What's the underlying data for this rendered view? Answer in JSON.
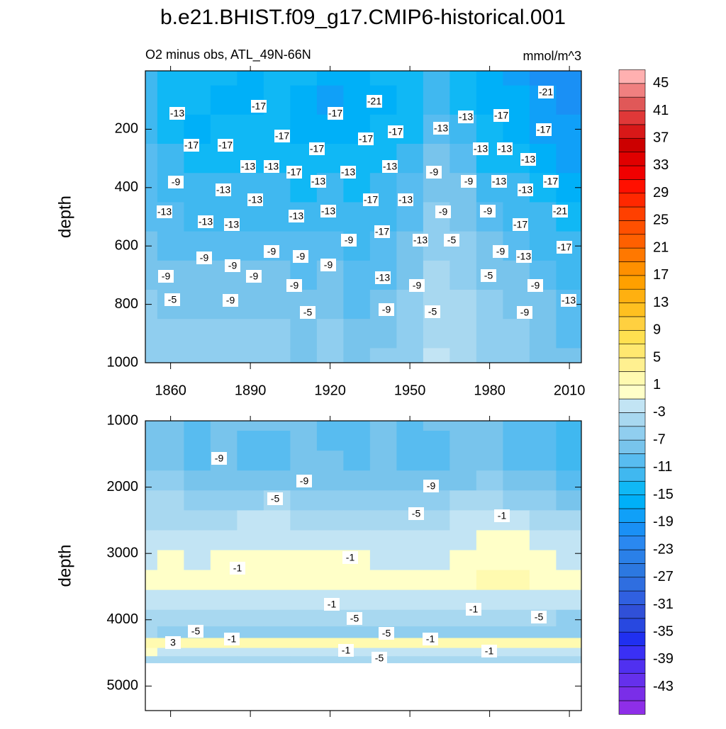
{
  "title": "b.e21.BHIST.f09_g17.CMIP6-historical.001",
  "colorbar": {
    "levels": [
      -45,
      -43,
      -41,
      -39,
      -37,
      -35,
      -33,
      -31,
      -29,
      -27,
      -25,
      -23,
      -21,
      -19,
      -17,
      -15,
      -13,
      -11,
      -9,
      -7,
      -5,
      -3,
      -1,
      1,
      3,
      5,
      7,
      9,
      11,
      13,
      15,
      17,
      19,
      21,
      23,
      25,
      27,
      29,
      31,
      33,
      35,
      37,
      39,
      41,
      43,
      45
    ],
    "ticks": [
      45,
      41,
      37,
      33,
      29,
      25,
      21,
      17,
      13,
      9,
      5,
      1,
      -3,
      -7,
      -11,
      -15,
      -19,
      -23,
      -27,
      -31,
      -35,
      -39,
      -43
    ],
    "colors": [
      "#8e2ee8",
      "#7a2ee8",
      "#6530ec",
      "#5030f0",
      "#3a30f5",
      "#2030f0",
      "#2848e0",
      "#3050d8",
      "#3060e0",
      "#2f6ee0",
      "#2c78e0",
      "#2a80e8",
      "#2a88f0",
      "#1a90f5",
      "#10a0f8",
      "#00b0f8",
      "#10b8f5",
      "#40b8f0",
      "#58bcf0",
      "#78c4ec",
      "#90ceef",
      "#a8d8f0",
      "#c2e4f4",
      "#ffffc8",
      "#fffab0",
      "#fff090",
      "#ffe870",
      "#ffe050",
      "#ffd040",
      "#ffc020",
      "#ffb010",
      "#ffa000",
      "#ff9000",
      "#ff7800",
      "#ff6000",
      "#ff5000",
      "#ff4000",
      "#ff2800",
      "#ff1000",
      "#f00000",
      "#e00000",
      "#cc0000",
      "#d81818",
      "#e03838",
      "#e05858",
      "#f08080",
      "#ffb0b0"
    ]
  },
  "chart_data": [
    {
      "type": "contour",
      "subtitle": "O2 minus obs, ATL_49N-66N",
      "units": "mmol/m^3",
      "ylabel": "depth",
      "x": [
        1850,
        1860,
        1870,
        1880,
        1890,
        1900,
        1910,
        1920,
        1930,
        1940,
        1950,
        1960,
        1970,
        1980,
        1990,
        2000,
        2010
      ],
      "y": [
        0,
        100,
        200,
        300,
        400,
        500,
        600,
        700,
        800,
        900,
        1000
      ],
      "z": [
        [
          -13,
          -14,
          -15,
          -14,
          -16,
          -15,
          -14,
          -16,
          -17,
          -15,
          -14,
          -13,
          -15,
          -17,
          -18,
          -20,
          -21
        ],
        [
          -13,
          -14,
          -15,
          -16,
          -16,
          -15,
          -16,
          -18,
          -17,
          -16,
          -15,
          -13,
          -15,
          -16,
          -17,
          -19,
          -21
        ],
        [
          -12,
          -14,
          -16,
          -15,
          -15,
          -15,
          -16,
          -16,
          -16,
          -15,
          -14,
          -11,
          -13,
          -15,
          -16,
          -18,
          -19
        ],
        [
          -11,
          -13,
          -15,
          -14,
          -14,
          -14,
          -15,
          -14,
          -15,
          -14,
          -12,
          -9,
          -11,
          -14,
          -14,
          -16,
          -18
        ],
        [
          -10,
          -12,
          -13,
          -13,
          -13,
          -13,
          -14,
          -13,
          -14,
          -13,
          -11,
          -8,
          -9,
          -12,
          -13,
          -15,
          -17
        ],
        [
          -10,
          -11,
          -12,
          -12,
          -12,
          -12,
          -13,
          -12,
          -13,
          -12,
          -10,
          -7,
          -8,
          -10,
          -12,
          -13,
          -15
        ],
        [
          -9,
          -10,
          -10,
          -10,
          -11,
          -10,
          -11,
          -10,
          -12,
          -11,
          -9,
          -6,
          -7,
          -9,
          -11,
          -12,
          -13
        ],
        [
          -8,
          -9,
          -9,
          -9,
          -9,
          -9,
          -10,
          -9,
          -11,
          -10,
          -8,
          -5,
          -6,
          -8,
          -9,
          -10,
          -12
        ],
        [
          -7,
          -8,
          -8,
          -8,
          -8,
          -8,
          -9,
          -8,
          -10,
          -9,
          -7,
          -4,
          -5,
          -7,
          -8,
          -9,
          -11
        ],
        [
          -7,
          -7,
          -7,
          -7,
          -7,
          -7,
          -8,
          -7,
          -9,
          -8,
          -6,
          -4,
          -5,
          -6,
          -7,
          -8,
          -10
        ],
        [
          -6,
          -7,
          -7,
          -7,
          -7,
          -7,
          -8,
          -7,
          -8,
          -7,
          -6,
          -3,
          -5,
          -6,
          -7,
          -8,
          -9
        ]
      ],
      "xlim": [
        1850.5,
        2014.5
      ],
      "ylim": [
        0,
        1000
      ],
      "yreverse": true,
      "xticks": [
        1860,
        1890,
        1920,
        1950,
        1980,
        2010
      ],
      "yticks": [
        200,
        400,
        600,
        800,
        1000
      ],
      "contour_labels": [
        -13,
        -17,
        -17,
        -21,
        -13,
        -17,
        -21,
        -17,
        -17,
        -17,
        -17,
        -17,
        -13,
        -17,
        -13,
        -13,
        -17,
        -13,
        -13,
        -13,
        -13,
        -13,
        -17,
        -13,
        -9,
        -9,
        -13,
        -13,
        -17,
        -9,
        -13,
        -13,
        -17,
        -13,
        -13,
        -13,
        -13,
        -13,
        -13,
        -9,
        -9,
        -21,
        -17,
        -9,
        -17,
        -13,
        -5,
        -17,
        -9,
        -9,
        -9,
        -9,
        -9,
        -9,
        -13,
        -9,
        -9,
        -13,
        -5,
        -9,
        -9,
        -9,
        -5,
        -9,
        -13,
        -5,
        -9,
        -5,
        -9
      ]
    },
    {
      "type": "contour",
      "ylabel": "depth",
      "x": [
        1850,
        1860,
        1870,
        1880,
        1890,
        1900,
        1910,
        1920,
        1930,
        1940,
        1950,
        1960,
        1970,
        1980,
        1990,
        2000,
        2010
      ],
      "y": [
        1000,
        1300,
        1600,
        1900,
        2200,
        2500,
        2800,
        3100,
        3400,
        3700,
        4000,
        4200,
        4350,
        4500,
        4600,
        4700
      ],
      "z": [
        [
          -9,
          -9,
          -10,
          -9,
          -9,
          -9,
          -9,
          -10,
          -10,
          -9,
          -10,
          -9,
          -9,
          -9,
          -10,
          -11,
          -12
        ],
        [
          -8,
          -9,
          -10,
          -9,
          -10,
          -10,
          -9,
          -10,
          -10,
          -9,
          -11,
          -10,
          -9,
          -9,
          -10,
          -11,
          -12
        ],
        [
          -8,
          -8,
          -10,
          -9,
          -10,
          -11,
          -9,
          -9,
          -10,
          -9,
          -11,
          -10,
          -9,
          -8,
          -10,
          -11,
          -12
        ],
        [
          -7,
          -7,
          -8,
          -8,
          -8,
          -8,
          -8,
          -8,
          -9,
          -8,
          -9,
          -8,
          -8,
          -7,
          -8,
          -9,
          -10
        ],
        [
          -5,
          -5,
          -6,
          -6,
          -6,
          -5,
          -6,
          -6,
          -6,
          -6,
          -6,
          -6,
          -5,
          -5,
          -6,
          -7,
          -8
        ],
        [
          -4,
          -4,
          -4,
          -4,
          -3,
          -3,
          -4,
          -4,
          -4,
          -4,
          -4,
          -4,
          -3,
          -2,
          -3,
          -4,
          -5
        ],
        [
          -3,
          -3,
          -3,
          -2,
          -2,
          -2,
          -2,
          -3,
          -3,
          -3,
          -3,
          -3,
          -2,
          0,
          -1,
          -2,
          -3
        ],
        [
          -2,
          -1,
          -2,
          -1,
          0,
          0,
          -1,
          0,
          -1,
          -2,
          -2,
          -2,
          -1,
          0,
          0,
          -1,
          -2
        ],
        [
          0,
          -1,
          -1,
          0,
          0,
          0,
          0,
          0,
          0,
          -1,
          -1,
          -1,
          0,
          1,
          1,
          0,
          -1
        ],
        [
          -2,
          -2,
          -2,
          -2,
          -2,
          -2,
          -2,
          -2,
          -2,
          -2,
          -2,
          -2,
          -2,
          -2,
          -2,
          -2,
          -2
        ],
        [
          -5,
          -5,
          -5,
          -5,
          -5,
          -5,
          -5,
          -5,
          -5,
          -5,
          -5,
          -5,
          -5,
          -5,
          -5,
          -5,
          -6
        ],
        [
          -5,
          -6,
          -6,
          -6,
          -6,
          -6,
          -6,
          -6,
          -6,
          -6,
          -6,
          -6,
          -6,
          -6,
          -6,
          -6,
          -6
        ],
        [
          2,
          1,
          1,
          1,
          1,
          1,
          1,
          1,
          1,
          1,
          1,
          1,
          1,
          1,
          1,
          1,
          1
        ],
        [
          -1,
          -2,
          -2,
          -2,
          -2,
          -2,
          -2,
          -2,
          -2,
          -2,
          -2,
          -2,
          -2,
          -2,
          -2,
          -2,
          -2
        ],
        [
          -5,
          -5,
          -5,
          -5,
          -5,
          -5,
          -5,
          -5,
          -5,
          -5,
          -5,
          -5,
          -5,
          -5,
          -5,
          -5,
          -5
        ],
        [
          null,
          null,
          null,
          null,
          null,
          null,
          null,
          null,
          null,
          null,
          null,
          null,
          null,
          null,
          null,
          null,
          null
        ]
      ],
      "xlim": [
        1850.5,
        2014.5
      ],
      "ylim": [
        1000,
        5370
      ],
      "yreverse": true,
      "yticks": [
        1000,
        2000,
        3000,
        4000,
        5000
      ],
      "contour_labels": [
        -9,
        -9,
        -9,
        -5,
        -5,
        -1,
        -1,
        -1,
        -1,
        -5,
        -1,
        -5,
        -5,
        -1,
        -5,
        -1,
        3,
        -1,
        -1,
        -5
      ]
    }
  ]
}
